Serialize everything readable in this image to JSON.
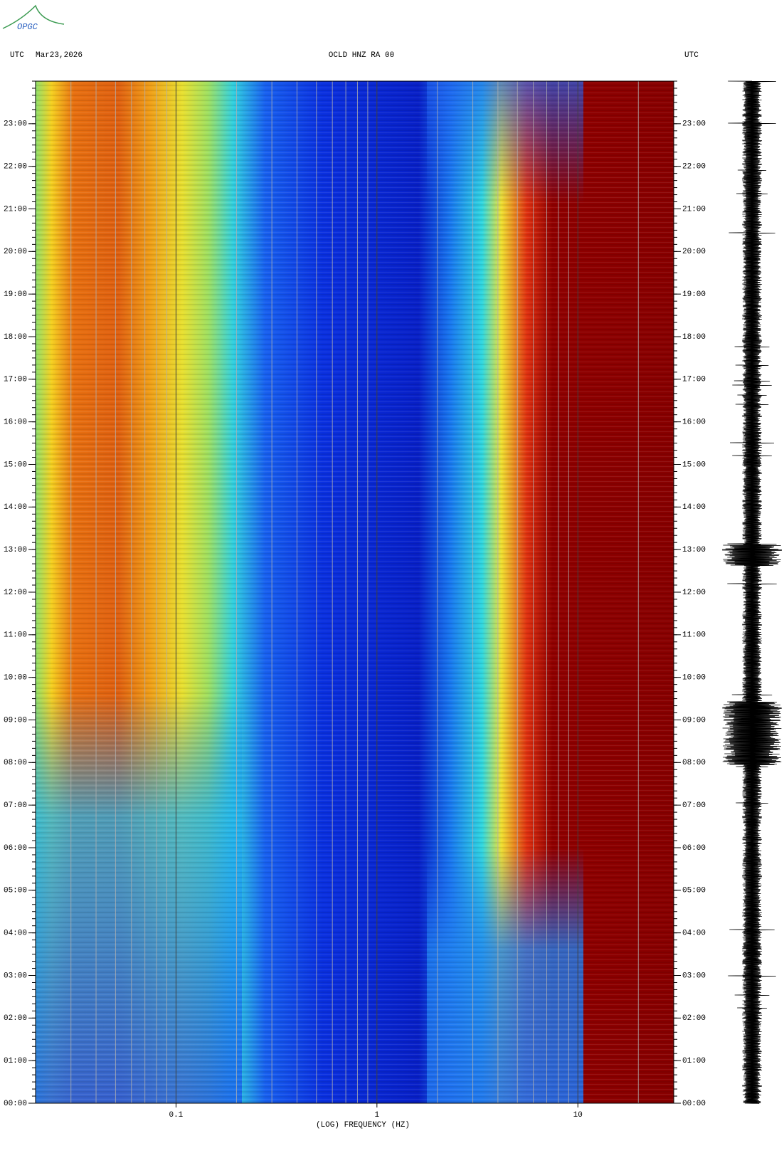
{
  "chart_data": {
    "type": "spectrogram",
    "logo": "OPGC",
    "title": "OCLD HNZ RA 00",
    "date": "Mar23,2026",
    "left_timezone": "UTC",
    "right_timezone": "UTC",
    "xlabel": "(LOG) FREQUENCY (HZ)",
    "xscale": "log",
    "xlim": [
      0.02,
      30
    ],
    "xticks": [
      0.1,
      1,
      10
    ],
    "xminorticks": [
      0.02,
      0.03,
      0.04,
      0.05,
      0.06,
      0.07,
      0.08,
      0.09,
      0.2,
      0.3,
      0.4,
      0.5,
      0.6,
      0.7,
      0.8,
      0.9,
      2,
      3,
      4,
      5,
      6,
      7,
      8,
      9,
      20
    ],
    "ylim": [
      0,
      24
    ],
    "yticks": [
      {
        "value": 0,
        "label": "00:00"
      },
      {
        "value": 1,
        "label": "01:00"
      },
      {
        "value": 2,
        "label": "02:00"
      },
      {
        "value": 3,
        "label": "03:00"
      },
      {
        "value": 4,
        "label": "04:00"
      },
      {
        "value": 5,
        "label": "05:00"
      },
      {
        "value": 6,
        "label": "06:00"
      },
      {
        "value": 7,
        "label": "07:00"
      },
      {
        "value": 8,
        "label": "08:00"
      },
      {
        "value": 9,
        "label": "09:00"
      },
      {
        "value": 10,
        "label": "10:00"
      },
      {
        "value": 11,
        "label": "11:00"
      },
      {
        "value": 12,
        "label": "12:00"
      },
      {
        "value": 13,
        "label": "13:00"
      },
      {
        "value": 14,
        "label": "14:00"
      },
      {
        "value": 15,
        "label": "15:00"
      },
      {
        "value": 16,
        "label": "16:00"
      },
      {
        "value": 17,
        "label": "17:00"
      },
      {
        "value": 18,
        "label": "18:00"
      },
      {
        "value": 19,
        "label": "19:00"
      },
      {
        "value": 20,
        "label": "20:00"
      },
      {
        "value": 21,
        "label": "21:00"
      },
      {
        "value": 22,
        "label": "22:00"
      },
      {
        "value": 23,
        "label": "23:00"
      }
    ]
  }
}
